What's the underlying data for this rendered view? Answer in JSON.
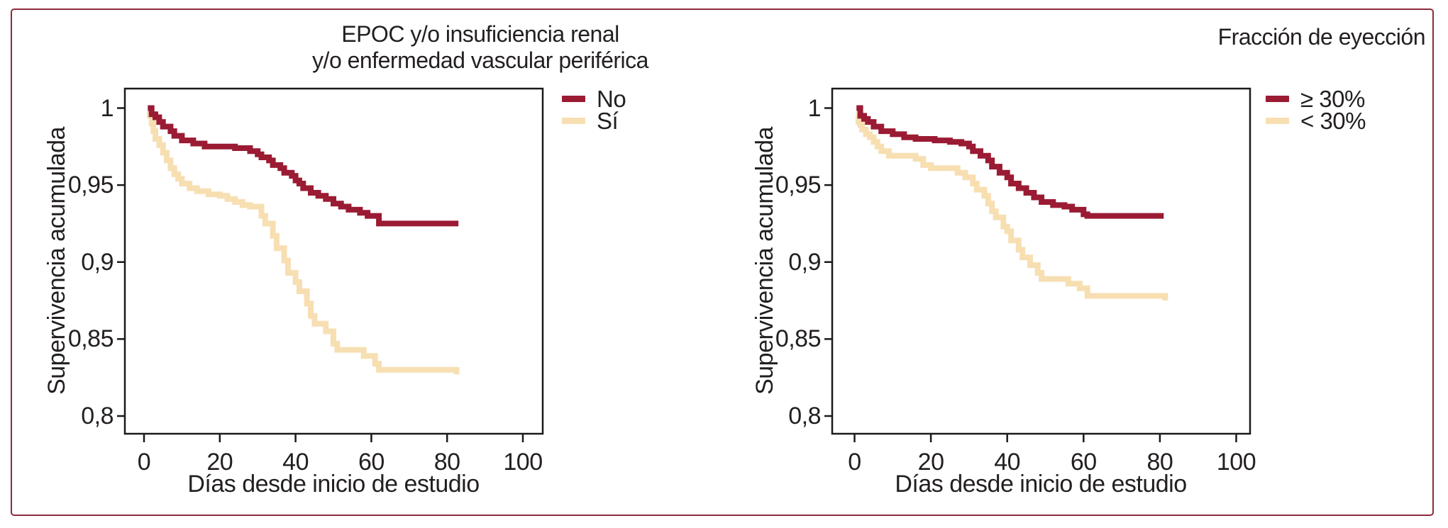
{
  "figure": {
    "frame_border_color": "#8C2B3C",
    "background_color": "#FFFFFF",
    "axis_color": "#1A1A1A"
  },
  "axes": {
    "y_label": "Supervivencia acumulada",
    "x_label": "Días desde inicio de estudio",
    "y_ticks": [
      "1",
      "0,95",
      "0,9",
      "0,85",
      "0,8"
    ],
    "x_ticks": [
      "0",
      "20",
      "40",
      "60",
      "80",
      "100"
    ]
  },
  "charts": [
    {
      "title_lines": [
        "EPOC y/o insuficiencia renal",
        "y/o enfermedad vascular periférica"
      ],
      "legend": [
        {
          "label": "No",
          "color": "#9A1B33"
        },
        {
          "label": "Sí",
          "color": "#F7DFB2"
        }
      ]
    },
    {
      "title_lines": [
        "Fracción de eyección"
      ],
      "legend": [
        {
          "label": "≥ 30%",
          "color": "#9A1B33"
        },
        {
          "label": "< 30%",
          "color": "#F7DFB2"
        }
      ]
    }
  ],
  "chart_data": [
    {
      "type": "line",
      "step": true,
      "title": "EPOC y/o insuficiencia renal y/o enfermedad vascular periférica",
      "xlabel": "Días desde inicio de estudio",
      "ylabel": "Supervivencia acumulada",
      "xlim": [
        -5,
        105
      ],
      "ylim": [
        0.788,
        1.013
      ],
      "x_tick_values": [
        0,
        20,
        40,
        60,
        80,
        100
      ],
      "y_tick_values": [
        1,
        0.95,
        0.9,
        0.85,
        0.8
      ],
      "grid": false,
      "legend_position": "outside-top-right",
      "series": [
        {
          "name": "No",
          "color": "#9A1B33",
          "points": [
            [
              1,
              1.0
            ],
            [
              2,
              0.996
            ],
            [
              3,
              0.994
            ],
            [
              4,
              0.991
            ],
            [
              5,
              0.988
            ],
            [
              7,
              0.985
            ],
            [
              8,
              0.982
            ],
            [
              10,
              0.979
            ],
            [
              13,
              0.977
            ],
            [
              16,
              0.975
            ],
            [
              24,
              0.974
            ],
            [
              28,
              0.972
            ],
            [
              30,
              0.97
            ],
            [
              31,
              0.968
            ],
            [
              33,
              0.966
            ],
            [
              34,
              0.963
            ],
            [
              36,
              0.961
            ],
            [
              37,
              0.958
            ],
            [
              39,
              0.956
            ],
            [
              40,
              0.953
            ],
            [
              41,
              0.951
            ],
            [
              42,
              0.948
            ],
            [
              44,
              0.945
            ],
            [
              46,
              0.943
            ],
            [
              48,
              0.941
            ],
            [
              50,
              0.938
            ],
            [
              52,
              0.936
            ],
            [
              54,
              0.934
            ],
            [
              57,
              0.932
            ],
            [
              59,
              0.93
            ],
            [
              62,
              0.925
            ],
            [
              83,
              0.925
            ]
          ]
        },
        {
          "name": "Sí",
          "color": "#F7DFB2",
          "points": [
            [
              1,
              0.998
            ],
            [
              1.5,
              0.995
            ],
            [
              2,
              0.99
            ],
            [
              2.5,
              0.985
            ],
            [
              3,
              0.98
            ],
            [
              4,
              0.976
            ],
            [
              5,
              0.971
            ],
            [
              6,
              0.966
            ],
            [
              7,
              0.961
            ],
            [
              8,
              0.957
            ],
            [
              9,
              0.954
            ],
            [
              10,
              0.951
            ],
            [
              12,
              0.948
            ],
            [
              14,
              0.946
            ],
            [
              17,
              0.944
            ],
            [
              20,
              0.943
            ],
            [
              22,
              0.941
            ],
            [
              24,
              0.939
            ],
            [
              26,
              0.937
            ],
            [
              28,
              0.936
            ],
            [
              31,
              0.93
            ],
            [
              32,
              0.925
            ],
            [
              34,
              0.917
            ],
            [
              35,
              0.909
            ],
            [
              37,
              0.901
            ],
            [
              38,
              0.893
            ],
            [
              40,
              0.887
            ],
            [
              41,
              0.881
            ],
            [
              43,
              0.873
            ],
            [
              44,
              0.865
            ],
            [
              45,
              0.86
            ],
            [
              48,
              0.855
            ],
            [
              50,
              0.847
            ],
            [
              51,
              0.843
            ],
            [
              58,
              0.839
            ],
            [
              61,
              0.834
            ],
            [
              62,
              0.83
            ],
            [
              82,
              0.83
            ],
            [
              82.5,
              0.827
            ]
          ]
        }
      ]
    },
    {
      "type": "line",
      "step": true,
      "title": "Fracción de eyección",
      "xlabel": "Días desde inicio de estudio",
      "ylabel": "Supervivencia acumulada",
      "xlim": [
        -5,
        105
      ],
      "ylim": [
        0.788,
        1.013
      ],
      "x_tick_values": [
        0,
        20,
        40,
        60,
        80,
        100
      ],
      "y_tick_values": [
        1,
        0.95,
        0.9,
        0.85,
        0.8
      ],
      "grid": false,
      "legend_position": "outside-top-right",
      "series": [
        {
          "name": "≥ 30%",
          "color": "#9A1B33",
          "points": [
            [
              0.5,
              1.0
            ],
            [
              1.5,
              0.995
            ],
            [
              2.5,
              0.993
            ],
            [
              3.5,
              0.991
            ],
            [
              5,
              0.988
            ],
            [
              7,
              0.985
            ],
            [
              10,
              0.983
            ],
            [
              13,
              0.981
            ],
            [
              16,
              0.98
            ],
            [
              21,
              0.979
            ],
            [
              25,
              0.978
            ],
            [
              28,
              0.977
            ],
            [
              30,
              0.975
            ],
            [
              31,
              0.972
            ],
            [
              33,
              0.969
            ],
            [
              35,
              0.966
            ],
            [
              36,
              0.962
            ],
            [
              38,
              0.958
            ],
            [
              40,
              0.955
            ],
            [
              41,
              0.951
            ],
            [
              43,
              0.948
            ],
            [
              45,
              0.945
            ],
            [
              47,
              0.942
            ],
            [
              49,
              0.939
            ],
            [
              52,
              0.937
            ],
            [
              55,
              0.936
            ],
            [
              57,
              0.934
            ],
            [
              60,
              0.931
            ],
            [
              61,
              0.93
            ],
            [
              81,
              0.93
            ]
          ]
        },
        {
          "name": "< 30%",
          "color": "#F7DFB2",
          "points": [
            [
              0.5,
              0.996
            ],
            [
              1,
              0.991
            ],
            [
              1.5,
              0.989
            ],
            [
              2,
              0.986
            ],
            [
              3,
              0.983
            ],
            [
              4,
              0.981
            ],
            [
              5,
              0.978
            ],
            [
              6,
              0.975
            ],
            [
              7,
              0.972
            ],
            [
              9,
              0.969
            ],
            [
              16,
              0.967
            ],
            [
              18,
              0.963
            ],
            [
              20,
              0.961
            ],
            [
              27,
              0.958
            ],
            [
              29,
              0.955
            ],
            [
              31,
              0.951
            ],
            [
              32,
              0.947
            ],
            [
              34,
              0.943
            ],
            [
              35,
              0.938
            ],
            [
              36,
              0.933
            ],
            [
              37,
              0.929
            ],
            [
              39,
              0.923
            ],
            [
              40,
              0.92
            ],
            [
              41,
              0.914
            ],
            [
              43,
              0.908
            ],
            [
              44,
              0.903
            ],
            [
              46,
              0.898
            ],
            [
              48,
              0.893
            ],
            [
              49,
              0.889
            ],
            [
              56,
              0.886
            ],
            [
              59,
              0.883
            ],
            [
              61,
              0.878
            ],
            [
              81,
              0.878
            ],
            [
              81.4,
              0.875
            ]
          ]
        }
      ]
    }
  ]
}
